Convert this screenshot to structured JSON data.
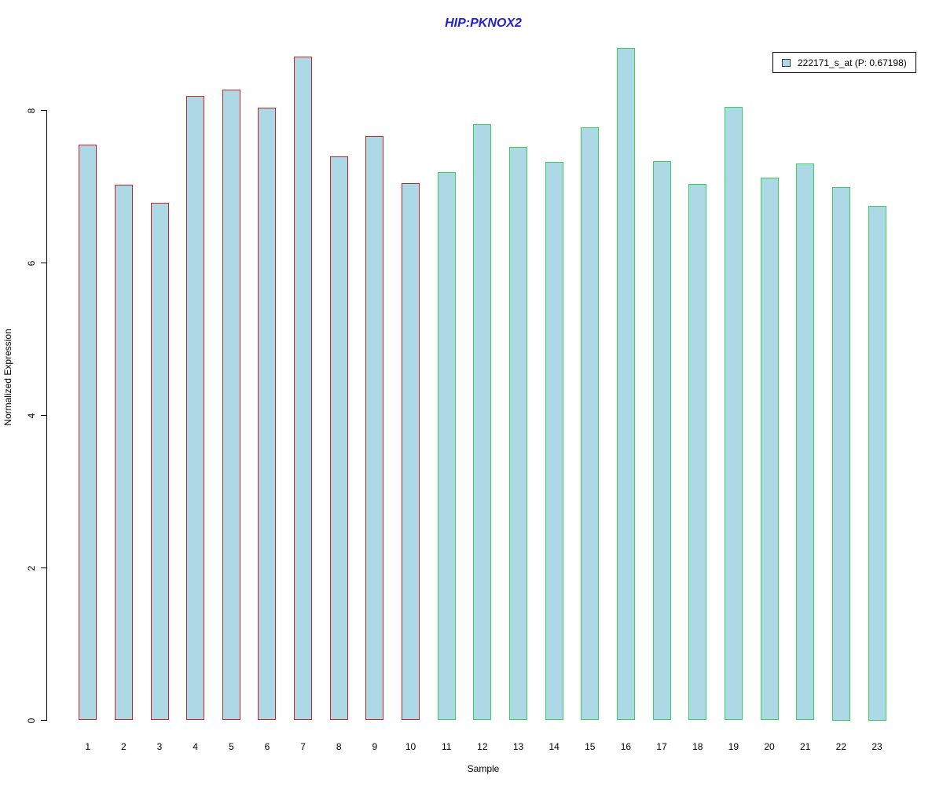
{
  "title": "HIP:PKNOX2",
  "legend": {
    "label": "222171_s_at (P: 0.67198)",
    "swatch_fill": "#add8e6",
    "position": "top-right"
  },
  "colors": {
    "title": "#2222cc",
    "bar_fill": "#add8e6",
    "red_group_border": "#cc2222",
    "green_group_border": "#3ad055",
    "axis": "#000000"
  },
  "chart_data": {
    "type": "bar",
    "title": "HIP:PKNOX2",
    "xlabel": "Sample",
    "ylabel": "Normalized Expression",
    "categories": [
      "1",
      "2",
      "3",
      "4",
      "5",
      "6",
      "7",
      "8",
      "9",
      "10",
      "11",
      "12",
      "13",
      "14",
      "15",
      "16",
      "17",
      "18",
      "19",
      "20",
      "21",
      "22",
      "23"
    ],
    "values": [
      7.55,
      7.03,
      6.79,
      8.19,
      8.27,
      8.04,
      8.71,
      7.4,
      7.66,
      7.05,
      7.19,
      7.82,
      7.52,
      7.32,
      7.78,
      8.82,
      7.33,
      7.04,
      8.05,
      7.12,
      7.3,
      7.0,
      6.75
    ],
    "bar_fill": "#add8e6",
    "border_color_by_bar": [
      "#cc2222",
      "#cc2222",
      "#cc2222",
      "#cc2222",
      "#cc2222",
      "#cc2222",
      "#cc2222",
      "#cc2222",
      "#cc2222",
      "#cc2222",
      "#3ad055",
      "#3ad055",
      "#3ad055",
      "#3ad055",
      "#3ad055",
      "#3ad055",
      "#3ad055",
      "#3ad055",
      "#3ad055",
      "#3ad055",
      "#3ad055",
      "#3ad055",
      "#3ad055"
    ],
    "red_border_samples": [
      "1",
      "2",
      "3",
      "4",
      "5",
      "6",
      "7",
      "8",
      "9",
      "10"
    ],
    "green_border_samples": [
      "11",
      "12",
      "13",
      "14",
      "15",
      "16",
      "17",
      "18",
      "19",
      "20",
      "21",
      "22",
      "23"
    ],
    "yticks": [
      0,
      2,
      4,
      6,
      8
    ],
    "ylim": [
      0,
      8.9
    ],
    "grid": false,
    "legend_entries": [
      "222171_s_at (P: 0.67198)"
    ],
    "legend_position": "top-right"
  }
}
